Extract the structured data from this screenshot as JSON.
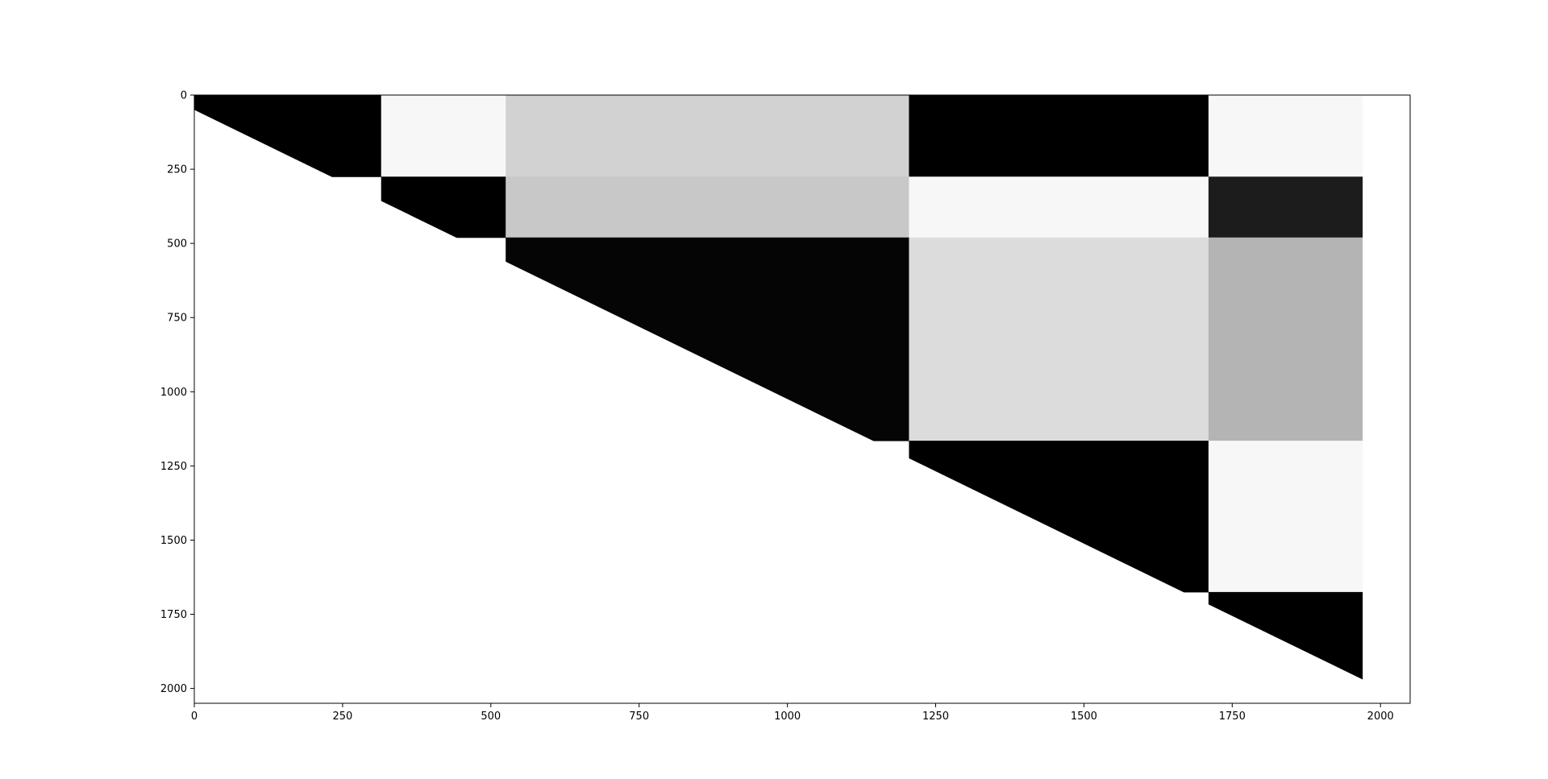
{
  "chart_data": {
    "type": "heatmap",
    "title": "",
    "xlabel": "",
    "ylabel": "",
    "colormap": "grayscale",
    "background_color": "#ffffff",
    "xlim": [
      0,
      2050
    ],
    "ylim": [
      2050,
      0
    ],
    "matrix_extent": 1970,
    "mask": "upper-triangle",
    "diagonal_offset": 50,
    "grid": false,
    "legend": "none",
    "xticks": [
      0,
      250,
      500,
      750,
      1000,
      1250,
      1500,
      1750,
      2000
    ],
    "yticks": [
      0,
      250,
      500,
      750,
      1000,
      1250,
      1500,
      1750,
      2000
    ],
    "row_breaks": [
      0,
      275,
      480,
      1165,
      1675,
      1970
    ],
    "col_breaks": [
      0,
      315,
      525,
      1205,
      1710,
      1970
    ],
    "block_colors": [
      [
        "#000000",
        "#f7f7f7",
        "#d2d2d2",
        "#000000",
        "#f7f7f7"
      ],
      [
        null,
        "#000000",
        "#c8c8c8",
        "#f7f7f7",
        "#1c1c1c"
      ],
      [
        null,
        null,
        "#050505",
        "#dcdcdc",
        "#b4b4b4"
      ],
      [
        null,
        null,
        null,
        "#000000",
        "#f7f7f7"
      ],
      [
        null,
        null,
        null,
        null,
        "#000000"
      ]
    ]
  }
}
